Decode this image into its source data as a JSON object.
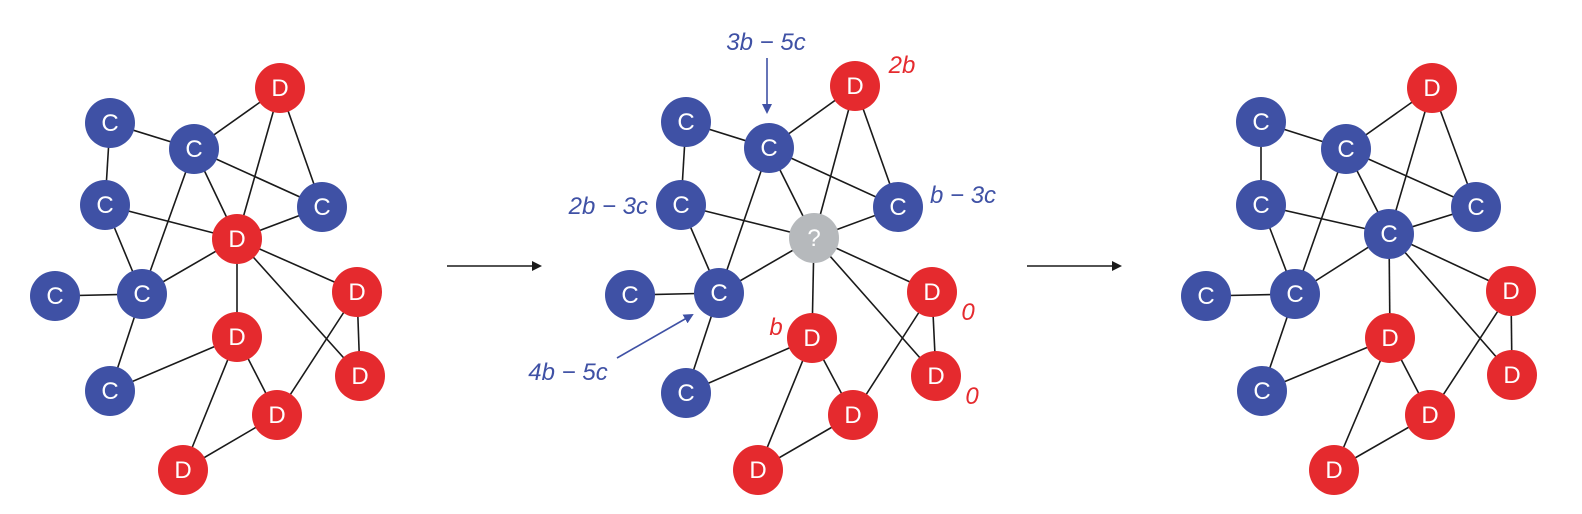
{
  "colors": {
    "cooperator": "#3f51a5",
    "defector": "#e52a2e",
    "unknown": "#b6b9bc",
    "edge": "#1a1a1a",
    "payoff_c": "#3f51a5",
    "payoff_d": "#e52a2e"
  },
  "labels": {
    "C": "C",
    "D": "D",
    "unknown": "?"
  },
  "panels": [
    {
      "nodes": [
        {
          "id": "d_top",
          "type": "D"
        },
        {
          "id": "c_a",
          "type": "C"
        },
        {
          "id": "c_hub",
          "type": "C"
        },
        {
          "id": "c_b",
          "type": "C"
        },
        {
          "id": "c_right",
          "type": "C"
        },
        {
          "id": "center",
          "type": "D"
        },
        {
          "id": "c_far",
          "type": "C"
        },
        {
          "id": "c_low",
          "type": "C"
        },
        {
          "id": "d_r1",
          "type": "D"
        },
        {
          "id": "d_mid",
          "type": "D"
        },
        {
          "id": "d_r2",
          "type": "D"
        },
        {
          "id": "c_bottom",
          "type": "C"
        },
        {
          "id": "d_bm",
          "type": "D"
        },
        {
          "id": "d_bot",
          "type": "D"
        }
      ]
    },
    {
      "nodes": [
        {
          "id": "d_top",
          "type": "D"
        },
        {
          "id": "c_a",
          "type": "C"
        },
        {
          "id": "c_hub",
          "type": "C"
        },
        {
          "id": "c_b",
          "type": "C"
        },
        {
          "id": "c_right",
          "type": "C"
        },
        {
          "id": "center",
          "type": "unknown"
        },
        {
          "id": "c_far",
          "type": "C"
        },
        {
          "id": "c_low",
          "type": "C"
        },
        {
          "id": "d_r1",
          "type": "D"
        },
        {
          "id": "d_mid",
          "type": "D"
        },
        {
          "id": "d_r2",
          "type": "D"
        },
        {
          "id": "c_bottom",
          "type": "C"
        },
        {
          "id": "d_bm",
          "type": "D"
        },
        {
          "id": "d_bot",
          "type": "D"
        }
      ],
      "payoffs": [
        {
          "id": "p_hub",
          "node": "c_hub",
          "text": "3b − 5c",
          "color": "C"
        },
        {
          "id": "p_top",
          "node": "d_top",
          "text": "2b",
          "color": "D"
        },
        {
          "id": "p_b",
          "node": "c_b",
          "text": "2b − 3c",
          "color": "C"
        },
        {
          "id": "p_right",
          "node": "c_right",
          "text": "b − 3c",
          "color": "C"
        },
        {
          "id": "p_low",
          "node": "c_low",
          "text": "4b − 5c",
          "color": "C"
        },
        {
          "id": "p_mid",
          "node": "d_mid",
          "text": "b",
          "color": "D"
        },
        {
          "id": "p_r1",
          "node": "d_r1",
          "text": "0",
          "color": "D"
        },
        {
          "id": "p_r2",
          "node": "d_r2",
          "text": "0",
          "color": "D"
        }
      ]
    },
    {
      "nodes": [
        {
          "id": "d_top",
          "type": "D"
        },
        {
          "id": "c_a",
          "type": "C"
        },
        {
          "id": "c_hub",
          "type": "C"
        },
        {
          "id": "c_b",
          "type": "C"
        },
        {
          "id": "c_right",
          "type": "C"
        },
        {
          "id": "center",
          "type": "C"
        },
        {
          "id": "c_far",
          "type": "C"
        },
        {
          "id": "c_low",
          "type": "C"
        },
        {
          "id": "d_r1",
          "type": "D"
        },
        {
          "id": "d_mid",
          "type": "D"
        },
        {
          "id": "d_r2",
          "type": "D"
        },
        {
          "id": "c_bottom",
          "type": "C"
        },
        {
          "id": "d_bm",
          "type": "D"
        },
        {
          "id": "d_bot",
          "type": "D"
        }
      ]
    }
  ],
  "edges": [
    [
      "d_top",
      "c_hub"
    ],
    [
      "d_top",
      "center"
    ],
    [
      "d_top",
      "c_right"
    ],
    [
      "c_a",
      "c_hub"
    ],
    [
      "c_a",
      "c_b"
    ],
    [
      "c_hub",
      "c_right"
    ],
    [
      "c_hub",
      "center"
    ],
    [
      "c_hub",
      "c_low"
    ],
    [
      "c_b",
      "center"
    ],
    [
      "c_b",
      "c_low"
    ],
    [
      "center",
      "c_right"
    ],
    [
      "center",
      "c_low"
    ],
    [
      "center",
      "d_r1"
    ],
    [
      "center",
      "d_mid"
    ],
    [
      "center",
      "d_r2"
    ],
    [
      "c_far",
      "c_low"
    ],
    [
      "c_low",
      "c_bottom"
    ],
    [
      "d_r1",
      "d_r2"
    ],
    [
      "d_r1",
      "d_bm"
    ],
    [
      "d_mid",
      "c_bottom"
    ],
    [
      "d_mid",
      "d_bm"
    ],
    [
      "d_mid",
      "d_bot"
    ],
    [
      "d_bm",
      "d_bot"
    ]
  ],
  "arrows": [
    {
      "id": "arrow-1"
    },
    {
      "id": "arrow-2"
    }
  ]
}
